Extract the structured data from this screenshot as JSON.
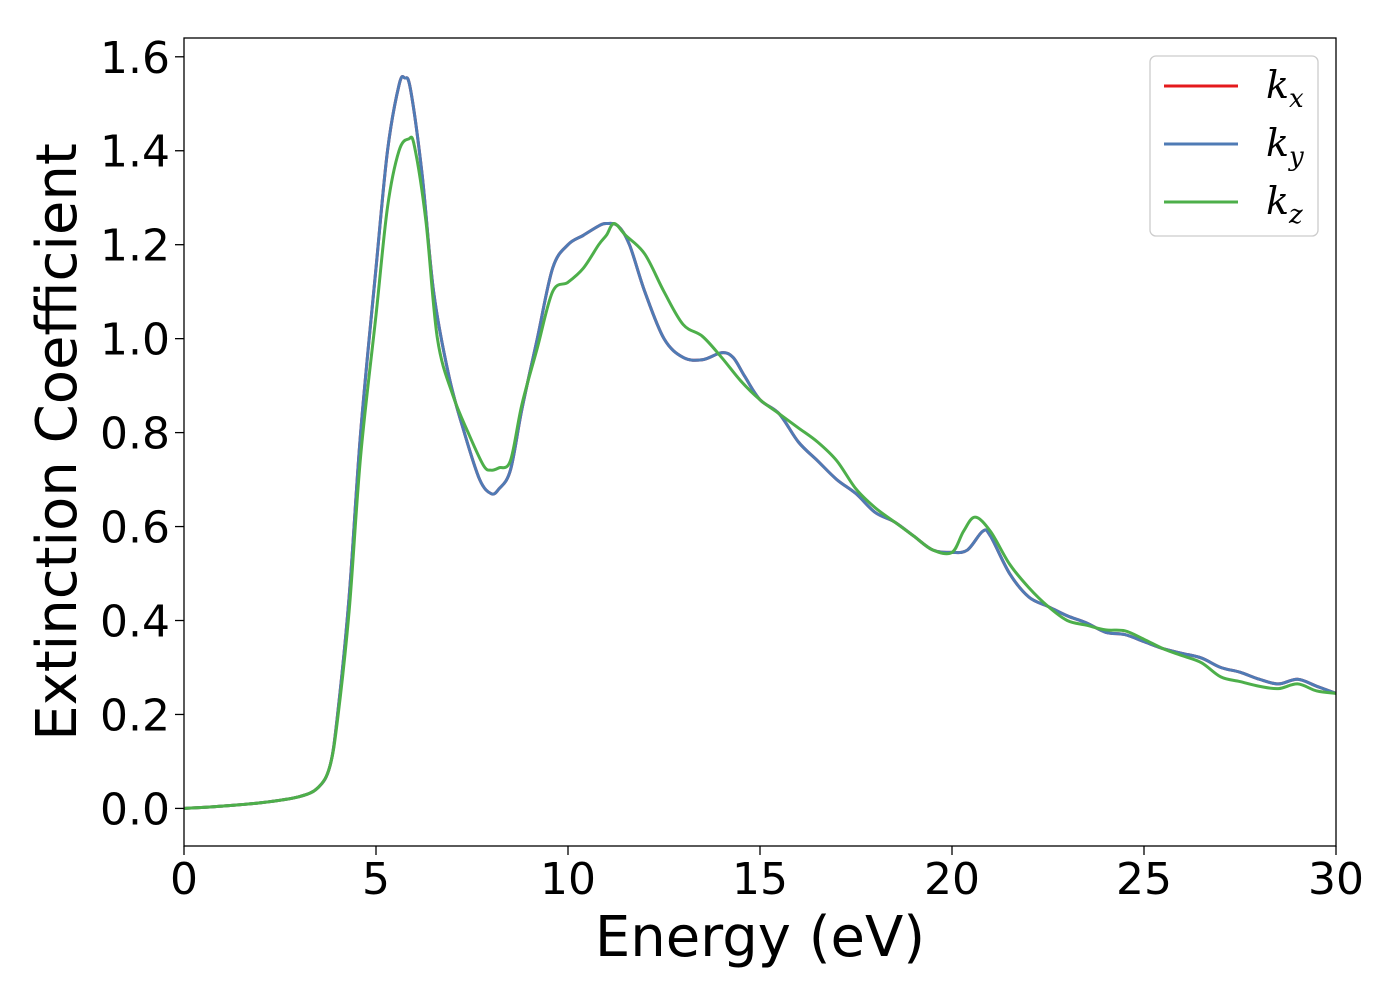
{
  "chart_data": {
    "type": "line",
    "title": "",
    "xlabel": "Energy (eV)",
    "ylabel": "Extinction Coefficient",
    "xlim": [
      0,
      30
    ],
    "ylim": [
      -0.08,
      1.64
    ],
    "xticks": [
      0,
      5,
      10,
      15,
      20,
      25,
      30
    ],
    "xtick_labels": [
      "0",
      "5",
      "10",
      "15",
      "20",
      "25",
      "30"
    ],
    "yticks": [
      0.0,
      0.2,
      0.4,
      0.6,
      0.8,
      1.0,
      1.2,
      1.4,
      1.6
    ],
    "ytick_labels": [
      "0.0",
      "0.2",
      "0.4",
      "0.6",
      "0.8",
      "1.0",
      "1.2",
      "1.4",
      "1.6"
    ],
    "grid": false,
    "legend_position": "top-right",
    "series": [
      {
        "name": "k_x",
        "legend_base": "k",
        "legend_sub": "x",
        "color": "#e41a1c",
        "x": [
          0,
          1,
          2,
          3,
          3.5,
          3.8,
          4.0,
          4.3,
          4.6,
          5.0,
          5.3,
          5.6,
          5.75,
          5.9,
          6.2,
          6.5,
          6.9,
          7.3,
          7.7,
          8.0,
          8.2,
          8.5,
          8.8,
          9.2,
          9.6,
          10.0,
          10.4,
          10.8,
          11.0,
          11.3,
          11.6,
          12.0,
          12.5,
          13.0,
          13.5,
          14.0,
          14.3,
          14.6,
          15.0,
          15.5,
          16.0,
          16.5,
          17.0,
          17.5,
          18.0,
          18.5,
          19.0,
          19.5,
          20.0,
          20.4,
          20.8,
          21.0,
          21.5,
          22.0,
          22.5,
          23.0,
          23.5,
          24.0,
          24.5,
          25.0,
          25.5,
          26.0,
          26.5,
          27.0,
          27.5,
          28.0,
          28.5,
          29.0,
          29.5,
          30.0
        ],
        "y": [
          0.0,
          0.005,
          0.012,
          0.025,
          0.045,
          0.09,
          0.2,
          0.45,
          0.8,
          1.15,
          1.4,
          1.54,
          1.555,
          1.53,
          1.35,
          1.1,
          0.92,
          0.8,
          0.7,
          0.67,
          0.68,
          0.72,
          0.85,
          1.0,
          1.15,
          1.2,
          1.22,
          1.24,
          1.245,
          1.24,
          1.2,
          1.1,
          1.0,
          0.96,
          0.955,
          0.97,
          0.96,
          0.92,
          0.87,
          0.84,
          0.78,
          0.74,
          0.7,
          0.67,
          0.63,
          0.61,
          0.58,
          0.55,
          0.545,
          0.55,
          0.59,
          0.58,
          0.5,
          0.45,
          0.43,
          0.41,
          0.395,
          0.375,
          0.37,
          0.355,
          0.34,
          0.33,
          0.32,
          0.3,
          0.29,
          0.275,
          0.265,
          0.275,
          0.26,
          0.245
        ]
      },
      {
        "name": "k_y",
        "legend_base": "k",
        "legend_sub": "y",
        "color": "#4f7bb5",
        "x": [
          0,
          1,
          2,
          3,
          3.5,
          3.8,
          4.0,
          4.3,
          4.6,
          5.0,
          5.3,
          5.6,
          5.75,
          5.9,
          6.2,
          6.5,
          6.9,
          7.3,
          7.7,
          8.0,
          8.2,
          8.5,
          8.8,
          9.2,
          9.6,
          10.0,
          10.4,
          10.8,
          11.0,
          11.3,
          11.6,
          12.0,
          12.5,
          13.0,
          13.5,
          14.0,
          14.3,
          14.6,
          15.0,
          15.5,
          16.0,
          16.5,
          17.0,
          17.5,
          18.0,
          18.5,
          19.0,
          19.5,
          20.0,
          20.4,
          20.8,
          21.0,
          21.5,
          22.0,
          22.5,
          23.0,
          23.5,
          24.0,
          24.5,
          25.0,
          25.5,
          26.0,
          26.5,
          27.0,
          27.5,
          28.0,
          28.5,
          29.0,
          29.5,
          30.0
        ],
        "y": [
          0.0,
          0.005,
          0.012,
          0.025,
          0.045,
          0.09,
          0.2,
          0.45,
          0.8,
          1.15,
          1.4,
          1.54,
          1.555,
          1.53,
          1.35,
          1.1,
          0.92,
          0.8,
          0.7,
          0.67,
          0.68,
          0.72,
          0.85,
          1.0,
          1.15,
          1.2,
          1.22,
          1.24,
          1.245,
          1.24,
          1.2,
          1.1,
          1.0,
          0.96,
          0.955,
          0.97,
          0.96,
          0.92,
          0.87,
          0.84,
          0.78,
          0.74,
          0.7,
          0.67,
          0.63,
          0.61,
          0.58,
          0.55,
          0.545,
          0.55,
          0.59,
          0.58,
          0.5,
          0.45,
          0.43,
          0.41,
          0.395,
          0.375,
          0.37,
          0.355,
          0.34,
          0.33,
          0.32,
          0.3,
          0.29,
          0.275,
          0.265,
          0.275,
          0.26,
          0.245
        ]
      },
      {
        "name": "k_z",
        "legend_base": "k",
        "legend_sub": "z",
        "color": "#4daf4a",
        "x": [
          0,
          1,
          2,
          3,
          3.5,
          3.8,
          4.0,
          4.3,
          4.6,
          5.0,
          5.3,
          5.6,
          5.85,
          6.0,
          6.3,
          6.6,
          7.0,
          7.4,
          7.8,
          8.0,
          8.2,
          8.5,
          8.8,
          9.2,
          9.6,
          10.0,
          10.4,
          10.8,
          11.0,
          11.2,
          11.5,
          12.0,
          12.5,
          13.0,
          13.5,
          14.0,
          14.5,
          15.0,
          15.5,
          16.0,
          16.5,
          17.0,
          17.5,
          18.0,
          18.5,
          19.0,
          19.5,
          20.0,
          20.3,
          20.6,
          21.0,
          21.5,
          22.0,
          22.5,
          23.0,
          23.5,
          24.0,
          24.5,
          25.0,
          25.5,
          26.0,
          26.5,
          27.0,
          27.5,
          28.0,
          28.5,
          29.0,
          29.5,
          30.0
        ],
        "y": [
          0.0,
          0.005,
          0.012,
          0.025,
          0.045,
          0.09,
          0.19,
          0.42,
          0.75,
          1.05,
          1.28,
          1.4,
          1.425,
          1.41,
          1.25,
          1.0,
          0.88,
          0.8,
          0.73,
          0.72,
          0.725,
          0.74,
          0.86,
          0.98,
          1.1,
          1.12,
          1.15,
          1.2,
          1.22,
          1.245,
          1.22,
          1.18,
          1.1,
          1.03,
          1.005,
          0.96,
          0.91,
          0.87,
          0.84,
          0.81,
          0.78,
          0.74,
          0.68,
          0.64,
          0.61,
          0.58,
          0.55,
          0.545,
          0.59,
          0.62,
          0.59,
          0.52,
          0.47,
          0.43,
          0.4,
          0.39,
          0.38,
          0.378,
          0.36,
          0.34,
          0.325,
          0.31,
          0.28,
          0.27,
          0.26,
          0.255,
          0.265,
          0.25,
          0.245
        ]
      }
    ]
  }
}
